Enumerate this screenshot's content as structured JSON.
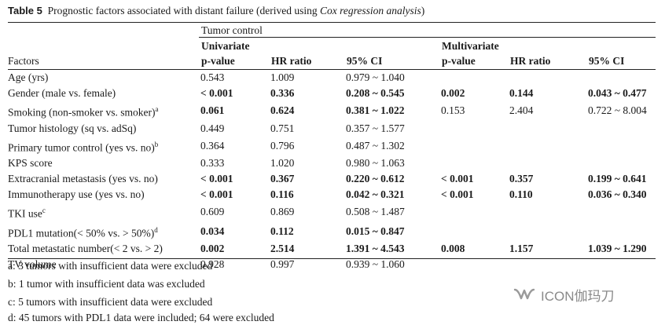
{
  "title": {
    "number": "Table 5",
    "text": "Prognostic factors associated with distant failure (derived using ",
    "italic": "Cox regression analysis",
    "close": ")"
  },
  "header": {
    "group": "Tumor control",
    "univariate": "Univariate",
    "multivariate": "Multivariate",
    "factors": "Factors",
    "p_value": "p-value",
    "hr_ratio": "HR ratio",
    "ci": "95% CI"
  },
  "rows": [
    {
      "factor": "Age (yrs)",
      "sup": "",
      "u_p": "0.543",
      "u_hr": "1.009",
      "u_ci": "0.979 ~ 1.040",
      "u_bold": false,
      "m_p": "",
      "m_hr": "",
      "m_ci": "",
      "m_bold": false
    },
    {
      "factor": "Gender (male vs. female)",
      "sup": "",
      "u_p": "< 0.001",
      "u_hr": "0.336",
      "u_ci": "0.208 ~ 0.545",
      "u_bold": true,
      "m_p": "0.002",
      "m_hr": "0.144",
      "m_ci": "0.043 ~ 0.477",
      "m_bold": true
    },
    {
      "factor": "Smoking (non-smoker vs. smoker)",
      "sup": "a",
      "u_p": "0.061",
      "u_hr": "0.624",
      "u_ci": "0.381 ~ 1.022",
      "u_bold": true,
      "m_p": "0.153",
      "m_hr": "2.404",
      "m_ci": "0.722 ~ 8.004",
      "m_bold": false
    },
    {
      "factor": "Tumor histology (sq vs. adSq)",
      "sup": "",
      "u_p": "0.449",
      "u_hr": "0.751",
      "u_ci": "0.357 ~ 1.577",
      "u_bold": false,
      "m_p": "",
      "m_hr": "",
      "m_ci": "",
      "m_bold": false
    },
    {
      "factor": "Primary tumor control (yes vs. no)",
      "sup": "b",
      "u_p": "0.364",
      "u_hr": "0.796",
      "u_ci": "0.487 ~ 1.302",
      "u_bold": false,
      "m_p": "",
      "m_hr": "",
      "m_ci": "",
      "m_bold": false
    },
    {
      "factor": "KPS score",
      "sup": "",
      "u_p": "0.333",
      "u_hr": "1.020",
      "u_ci": "0.980 ~ 1.063",
      "u_bold": false,
      "m_p": "",
      "m_hr": "",
      "m_ci": "",
      "m_bold": false
    },
    {
      "factor": "Extracranial metastasis (yes vs. no)",
      "sup": "",
      "u_p": "< 0.001",
      "u_hr": "0.367",
      "u_ci": "0.220 ~ 0.612",
      "u_bold": true,
      "m_p": "< 0.001",
      "m_hr": "0.357",
      "m_ci": "0.199 ~ 0.641",
      "m_bold": true
    },
    {
      "factor": "Immunotherapy use (yes vs. no)",
      "sup": "",
      "u_p": "< 0.001",
      "u_hr": "0.116",
      "u_ci": "0.042 ~ 0.321",
      "u_bold": true,
      "m_p": "< 0.001",
      "m_hr": "0.110",
      "m_ci": "0.036 ~ 0.340",
      "m_bold": true
    },
    {
      "factor": "TKI use",
      "sup": "c",
      "u_p": "0.609",
      "u_hr": "0.869",
      "u_ci": "0.508 ~ 1.487",
      "u_bold": false,
      "m_p": "",
      "m_hr": "",
      "m_ci": "",
      "m_bold": false
    },
    {
      "factor": "PDL1 mutation(< 50% vs. > 50%)",
      "sup": "d",
      "u_p": "0.034",
      "u_hr": "0.112",
      "u_ci": "0.015 ~ 0.847",
      "u_bold": true,
      "m_p": "",
      "m_hr": "",
      "m_ci": "",
      "m_bold": false
    },
    {
      "factor": "Total metastatic number(< 2 vs. > 2)",
      "sup": "",
      "u_p": "0.002",
      "u_hr": "2.514",
      "u_ci": "1.391 ~ 4.543",
      "u_bold": true,
      "m_p": "0.008",
      "m_hr": "1.157",
      "m_ci": "1.039 ~ 1.290",
      "m_bold": true
    },
    {
      "factor": "TV volume",
      "sup": "",
      "u_p": "0.928",
      "u_hr": "0.997",
      "u_ci": "0.939 ~ 1.060",
      "u_bold": false,
      "m_p": "",
      "m_hr": "",
      "m_ci": "",
      "m_bold": false
    }
  ],
  "footnotes": [
    "a: 3 tumors with insufficient data were excluded",
    "b: 1 tumor with insufficient data was excluded",
    "c: 5 tumors with insufficient data were excluded",
    "d: 45 tumors with PDL1 data were included; 64 were excluded"
  ],
  "watermark": {
    "text": "ICON伽玛刀",
    "icon": "wechat-channel-icon",
    "color": "#8a8a8a"
  }
}
